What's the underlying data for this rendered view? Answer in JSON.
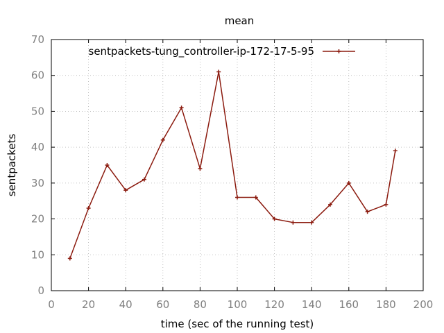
{
  "chart_data": {
    "type": "line",
    "title": "mean",
    "xlabel": "time (sec of the running test)",
    "ylabel": "sentpackets",
    "xlim": [
      0,
      200
    ],
    "ylim": [
      0,
      70
    ],
    "xticks": [
      "0",
      "20",
      "40",
      "60",
      "80",
      "100",
      "120",
      "140",
      "160",
      "180",
      "200"
    ],
    "yticks": [
      "0",
      "10",
      "20",
      "30",
      "40",
      "50",
      "60",
      "70"
    ],
    "grid": true,
    "legend_position": "top-right",
    "series": [
      {
        "name": "sentpackets-tung_controller-ip-172-17-5-95",
        "color": "#8b1a0e",
        "x": [
          10,
          20,
          30,
          40,
          50,
          60,
          70,
          80,
          90,
          100,
          110,
          120,
          130,
          140,
          150,
          160,
          170,
          180,
          185
        ],
        "y": [
          9,
          23,
          35,
          28,
          31,
          42,
          51,
          34,
          61,
          26,
          26,
          20,
          19,
          19,
          24,
          30,
          22,
          24,
          39
        ]
      }
    ]
  }
}
